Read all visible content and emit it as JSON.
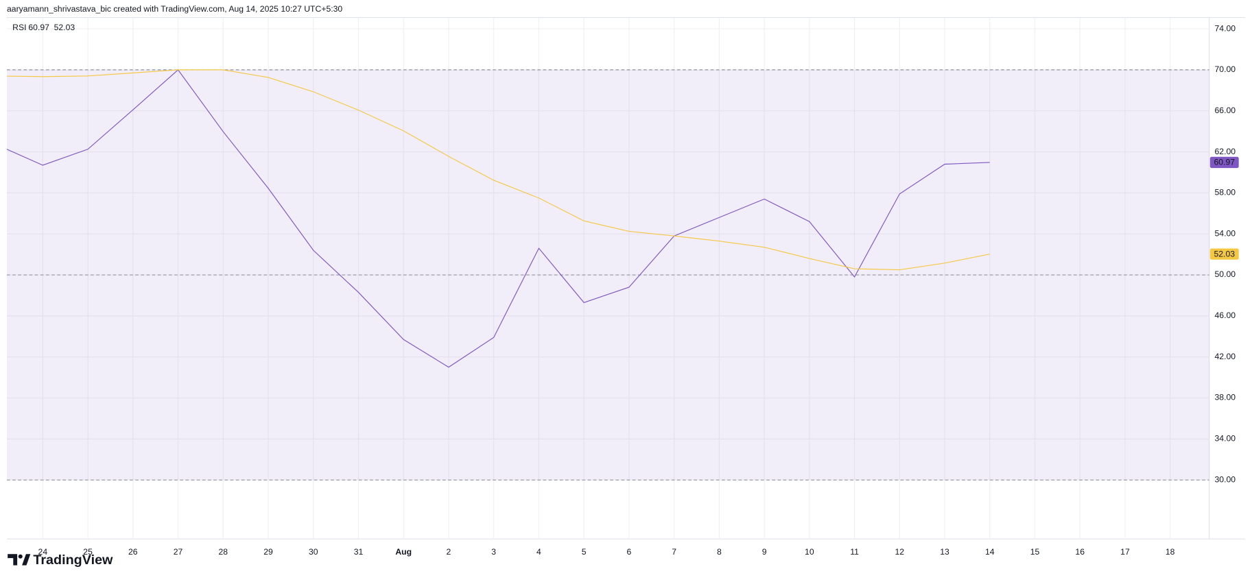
{
  "header": {
    "credit": "aaryamann_shrivastava_bic created with TradingView.com, Aug 14, 2025 10:27 UTC+5:30"
  },
  "footer": {
    "brand": "TradingView"
  },
  "chart_data": {
    "type": "line",
    "indicator": "RSI",
    "categories": [
      null,
      "24",
      "25",
      "26",
      "27",
      "28",
      "29",
      "30",
      "31",
      "Aug",
      "2",
      "3",
      "4",
      "5",
      "6",
      "7",
      "8",
      "9",
      "10",
      "11",
      "12",
      "13",
      "14",
      "15",
      "16",
      "17",
      "18"
    ],
    "series": [
      {
        "color": "#7e57c2",
        "values": [
          62.65,
          60.7,
          62.26,
          66.1,
          70.0,
          63.97,
          58.45,
          52.4,
          48.3,
          43.7,
          41.0,
          43.9,
          52.6,
          47.3,
          48.8,
          53.8,
          55.6,
          57.4,
          55.2,
          49.8,
          57.9,
          60.8,
          60.97,
          null,
          null,
          null,
          null
        ],
        "value_labels": [
          null,
          null,
          null,
          null,
          null,
          null,
          null,
          null,
          null,
          null,
          null,
          null,
          null,
          null,
          null,
          null,
          null,
          null,
          null,
          null,
          null,
          null,
          "60.97",
          null,
          null,
          null,
          null
        ]
      },
      {
        "color": "#f5c842",
        "values": [
          69.4,
          69.34,
          69.4,
          69.7,
          70.0,
          70.0,
          69.26,
          67.86,
          66.07,
          64.05,
          61.56,
          59.23,
          57.5,
          55.27,
          54.25,
          53.8,
          53.3,
          52.7,
          51.6,
          50.6,
          50.5,
          51.15,
          52.03,
          null,
          null,
          null,
          null
        ],
        "value_labels": [
          null,
          null,
          null,
          null,
          null,
          null,
          null,
          null,
          null,
          null,
          null,
          null,
          null,
          null,
          null,
          null,
          null,
          null,
          null,
          null,
          null,
          null,
          "52.03",
          null,
          null,
          null,
          null
        ]
      }
    ],
    "ylim": [
      24.25,
      75.1
    ],
    "yticks": [
      {
        "value": 30,
        "label": "30.00"
      },
      {
        "value": 34,
        "label": "34.00"
      },
      {
        "value": 38,
        "label": "38.00"
      },
      {
        "value": 42,
        "label": "42.00"
      },
      {
        "value": 46,
        "label": "46.00"
      },
      {
        "value": 50,
        "label": "50.00"
      },
      {
        "value": 54,
        "label": "54.00"
      },
      {
        "value": 58,
        "label": "58.00"
      },
      {
        "value": 62,
        "label": "62.00"
      },
      {
        "value": 66,
        "label": "66.00"
      },
      {
        "value": 70,
        "label": "70.00"
      },
      {
        "value": 74,
        "label": "74.00"
      }
    ],
    "levels": [
      30,
      50,
      70
    ],
    "band_color": "#7e57c2",
    "grid": true
  }
}
